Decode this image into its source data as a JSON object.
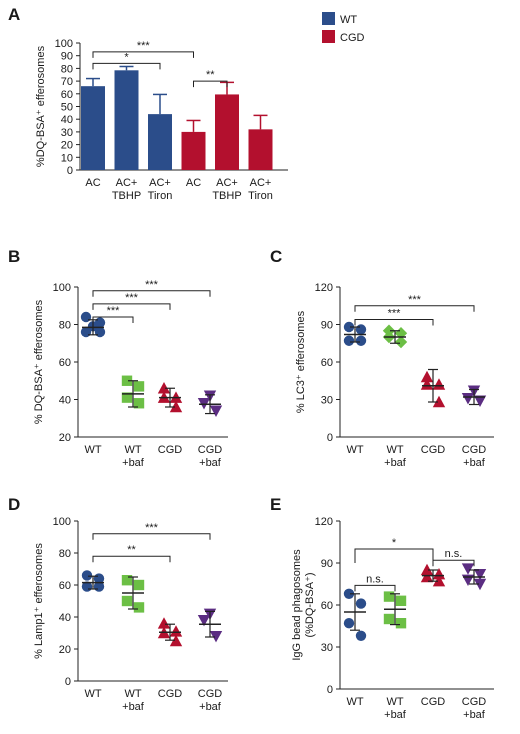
{
  "chart_data": [
    {
      "panel": "A",
      "type": "bar",
      "ylabel": "%DQ-BSA⁺ efferosomes",
      "ylim": [
        0,
        100
      ],
      "yticks": [
        0,
        10,
        20,
        30,
        40,
        50,
        60,
        70,
        80,
        90,
        100
      ],
      "categories": [
        [
          "AC"
        ],
        [
          "AC+",
          "TBHP"
        ],
        [
          "AC+",
          "Tiron"
        ],
        [
          "AC"
        ],
        [
          "AC+",
          "TBHP"
        ],
        [
          "AC+",
          "Tiron"
        ]
      ],
      "values": [
        66,
        78.5,
        44,
        30,
        59.5,
        32
      ],
      "errors": [
        6,
        3,
        15.5,
        9,
        9.5,
        11
      ],
      "groups": [
        0,
        0,
        0,
        1,
        1,
        1
      ],
      "legend": [
        {
          "name": "WT",
          "color": "#2b4d8a"
        },
        {
          "name": "CGD",
          "color": "#b3102e"
        }
      ],
      "legend_position": "top-right",
      "significance": [
        {
          "from": 0,
          "to": 3,
          "label": "***",
          "level": 93
        },
        {
          "from": 0,
          "to": 2,
          "label": "*",
          "level": 84
        },
        {
          "from": 3,
          "to": 4,
          "label": "**",
          "level": 70
        }
      ]
    },
    {
      "panel": "B",
      "type": "scatter",
      "ylabel": "% DQ-BSA⁺ efferosomes",
      "ylim": [
        20,
        100
      ],
      "yticks": [
        20,
        40,
        60,
        80,
        100
      ],
      "categories": [
        [
          "WT"
        ],
        [
          "WT",
          "+baf"
        ],
        [
          "CGD"
        ],
        [
          "CGD",
          "+baf"
        ]
      ],
      "groups": [
        {
          "points": [
            84,
            81,
            79,
            76,
            76
          ],
          "mean": 78.5,
          "sd": 4,
          "color": "#2b4d8a",
          "marker": "circle"
        },
        {
          "points": [
            50,
            47,
            41,
            38
          ],
          "mean": 43,
          "sd": 7,
          "color": "#6cbf45",
          "marker": "square"
        },
        {
          "points": [
            46,
            41,
            41,
            36
          ],
          "mean": 41,
          "sd": 5,
          "color": "#b3102e",
          "marker": "triangle-up"
        },
        {
          "points": [
            42,
            38,
            34
          ],
          "mean": 37.5,
          "sd": 5,
          "color": "#5b2d82",
          "marker": "triangle-down"
        }
      ],
      "significance": [
        {
          "from": 0,
          "to": 3,
          "label": "***",
          "level": 98
        },
        {
          "from": 0,
          "to": 2,
          "label": "***",
          "level": 91
        },
        {
          "from": 0,
          "to": 1,
          "label": "***",
          "level": 84
        }
      ]
    },
    {
      "panel": "C",
      "type": "scatter",
      "ylabel": "% LC3⁺ efferosomes",
      "ylim": [
        0,
        120
      ],
      "yticks": [
        0,
        30,
        60,
        90,
        120
      ],
      "categories": [
        [
          "WT"
        ],
        [
          "WT",
          "+baf"
        ],
        [
          "CGD"
        ],
        [
          "CGD",
          "+baf"
        ]
      ],
      "groups": [
        {
          "points": [
            88,
            86,
            77,
            77
          ],
          "mean": 82,
          "sd": 6,
          "color": "#2b4d8a",
          "marker": "circle"
        },
        {
          "points": [
            85,
            83,
            80,
            76
          ],
          "mean": 80,
          "sd": 5,
          "color": "#6cbf45",
          "marker": "diamond"
        },
        {
          "points": [
            48,
            42,
            42,
            28
          ],
          "mean": 41,
          "sd": 13,
          "color": "#b3102e",
          "marker": "triangle-up"
        },
        {
          "points": [
            37,
            31,
            29
          ],
          "mean": 32,
          "sd": 6,
          "color": "#5b2d82",
          "marker": "triangle-down"
        }
      ],
      "significance": [
        {
          "from": 0,
          "to": 3,
          "label": "***",
          "level": 105
        },
        {
          "from": 0,
          "to": 2,
          "label": "***",
          "level": 94
        }
      ]
    },
    {
      "panel": "D",
      "type": "scatter",
      "ylabel": "% Lamp1⁺ efferosomes",
      "ylim": [
        0,
        100
      ],
      "yticks": [
        0,
        20,
        40,
        60,
        80,
        100
      ],
      "categories": [
        [
          "WT"
        ],
        [
          "WT",
          "+baf"
        ],
        [
          "CGD"
        ],
        [
          "CGD",
          "+baf"
        ]
      ],
      "groups": [
        {
          "points": [
            66,
            64,
            59,
            59
          ],
          "mean": 61.5,
          "sd": 4,
          "color": "#2b4d8a",
          "marker": "circle"
        },
        {
          "points": [
            63,
            60,
            50,
            46
          ],
          "mean": 55,
          "sd": 10,
          "color": "#6cbf45",
          "marker": "square"
        },
        {
          "points": [
            36,
            31,
            30,
            25
          ],
          "mean": 30.5,
          "sd": 5,
          "color": "#b3102e",
          "marker": "triangle-up"
        },
        {
          "points": [
            42,
            38,
            28
          ],
          "mean": 35.5,
          "sd": 8,
          "color": "#5b2d82",
          "marker": "triangle-down"
        }
      ],
      "significance": [
        {
          "from": 0,
          "to": 3,
          "label": "***",
          "level": 92
        },
        {
          "from": 0,
          "to": 2,
          "label": "**",
          "level": 78
        }
      ]
    },
    {
      "panel": "E",
      "type": "scatter",
      "ylabel": "IgG bead phagosomes (%DQ-BSA⁺)",
      "ylabel_lines": [
        "IgG bead phagosomes",
        "(%DQ-BSA⁺)"
      ],
      "ylim": [
        0,
        120
      ],
      "yticks": [
        0,
        30,
        60,
        90,
        120
      ],
      "categories": [
        [
          "WT"
        ],
        [
          "WT",
          "+baf"
        ],
        [
          "CGD"
        ],
        [
          "CGD",
          "+baf"
        ]
      ],
      "groups": [
        {
          "points": [
            68,
            61,
            47,
            38
          ],
          "mean": 55,
          "sd": 13,
          "color": "#2b4d8a",
          "marker": "circle"
        },
        {
          "points": [
            66,
            63,
            50,
            47
          ],
          "mean": 57,
          "sd": 11,
          "color": "#6cbf45",
          "marker": "square"
        },
        {
          "points": [
            85,
            82,
            80,
            77
          ],
          "mean": 81,
          "sd": 4,
          "color": "#b3102e",
          "marker": "triangle-up"
        },
        {
          "points": [
            86,
            82,
            78,
            75
          ],
          "mean": 80,
          "sd": 5,
          "color": "#5b2d82",
          "marker": "triangle-down"
        }
      ],
      "significance": [
        {
          "from": 0,
          "to": 2,
          "label": "*",
          "level": 100,
          "style": "drop"
        },
        {
          "from": 0,
          "to": 1,
          "label": "n.s.",
          "level": 74
        },
        {
          "from": 2,
          "to": 3,
          "label": "n.s.",
          "level": 92
        }
      ]
    }
  ]
}
